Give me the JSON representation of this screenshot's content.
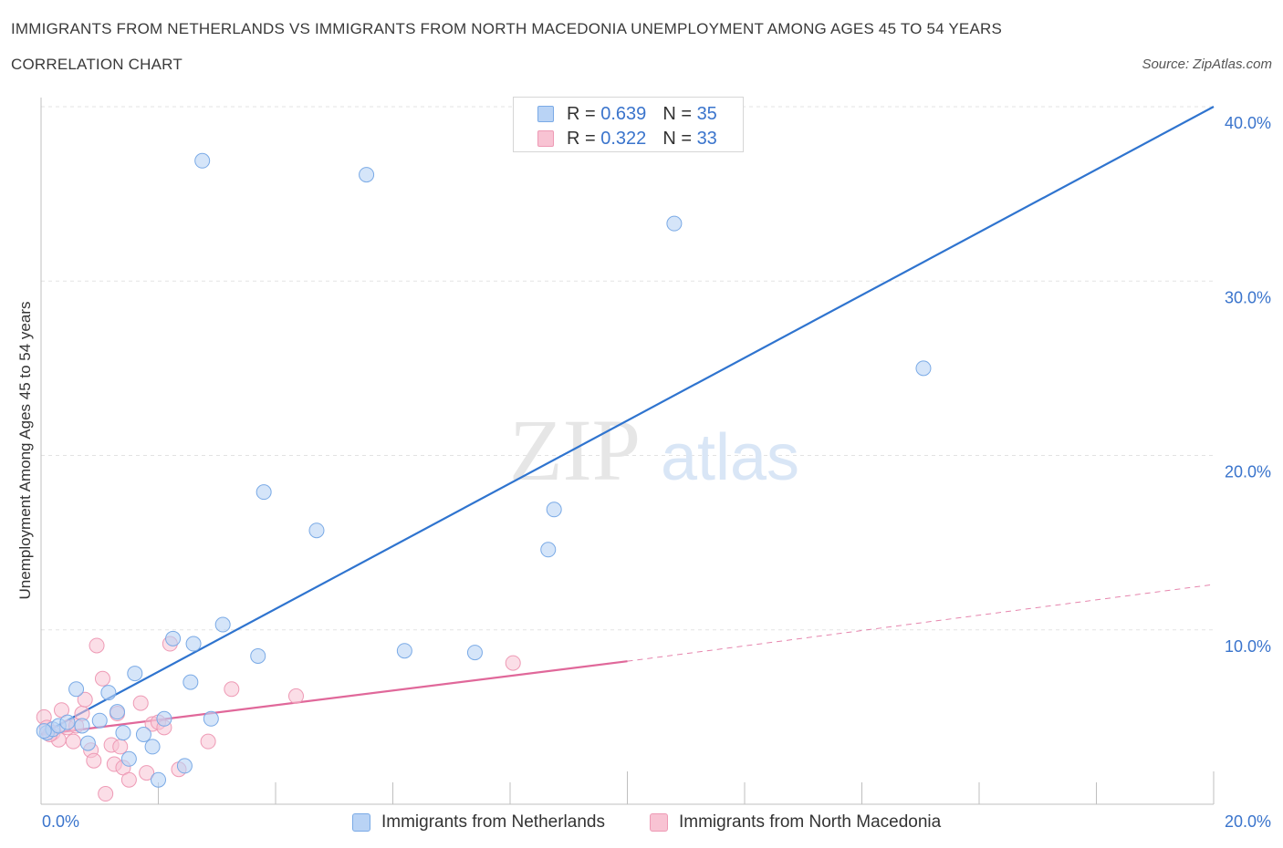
{
  "header": {
    "title": "IMMIGRANTS FROM NETHERLANDS VS IMMIGRANTS FROM NORTH MACEDONIA UNEMPLOYMENT AMONG AGES 45 TO 54 YEARS",
    "subtitle": "CORRELATION CHART",
    "source": "Source: ZipAtlas.com"
  },
  "watermark": {
    "zip": "ZIP",
    "atlas": "atlas"
  },
  "legend": {
    "netherlands": {
      "r_label": "R =",
      "r_value": "0.639",
      "n_label": "N =",
      "n_value": "35"
    },
    "macedonia": {
      "r_label": "R =",
      "r_value": "0.322",
      "n_label": "N =",
      "n_value": "33"
    }
  },
  "colors": {
    "netherlands_fill": "#b9d3f5",
    "netherlands_stroke": "#7aaae6",
    "netherlands_line": "#2f74cf",
    "macedonia_fill": "#f8c3d3",
    "macedonia_stroke": "#ee9ab5",
    "macedonia_line": "#e0689a",
    "tick_label": "#3a74cc",
    "grid": "#e3e3e3"
  },
  "chart_data": {
    "type": "scatter",
    "title": "IMMIGRANTS FROM NETHERLANDS VS IMMIGRANTS FROM NORTH MACEDONIA UNEMPLOYMENT AMONG AGES 45 TO 54 YEARS",
    "xlabel": "",
    "ylabel": "Unemployment Among Ages 45 to 54 years",
    "xlim": [
      0,
      20
    ],
    "ylim": [
      0,
      40
    ],
    "x_tick_labels": [
      "0.0%",
      "20.0%"
    ],
    "y_ticks": [
      10,
      20,
      30,
      40
    ],
    "y_tick_labels": [
      "10.0%",
      "20.0%",
      "30.0%",
      "40.0%"
    ],
    "grid": true,
    "legend_position": "top-center",
    "series": [
      {
        "name": "Immigrants from Netherlands",
        "points": [
          [
            0.1,
            4.1
          ],
          [
            0.2,
            4.3
          ],
          [
            0.3,
            4.5
          ],
          [
            0.45,
            4.7
          ],
          [
            0.6,
            6.6
          ],
          [
            0.7,
            4.5
          ],
          [
            0.8,
            3.5
          ],
          [
            1.0,
            4.8
          ],
          [
            1.15,
            6.4
          ],
          [
            1.3,
            5.3
          ],
          [
            1.4,
            4.1
          ],
          [
            1.5,
            2.6
          ],
          [
            1.6,
            7.5
          ],
          [
            1.75,
            4.0
          ],
          [
            1.9,
            3.3
          ],
          [
            2.0,
            1.4
          ],
          [
            2.1,
            4.9
          ],
          [
            2.25,
            9.5
          ],
          [
            2.45,
            2.2
          ],
          [
            2.55,
            7.0
          ],
          [
            2.6,
            9.2
          ],
          [
            2.9,
            4.9
          ],
          [
            2.75,
            36.9
          ],
          [
            3.1,
            10.3
          ],
          [
            3.7,
            8.5
          ],
          [
            3.8,
            17.9
          ],
          [
            4.7,
            15.7
          ],
          [
            5.55,
            36.1
          ],
          [
            6.2,
            8.8
          ],
          [
            7.4,
            8.7
          ],
          [
            8.65,
            14.6
          ],
          [
            8.75,
            16.9
          ],
          [
            10.8,
            33.3
          ],
          [
            15.05,
            25.0
          ],
          [
            0.05,
            4.2
          ]
        ],
        "trend": {
          "from": [
            0,
            4.0
          ],
          "to": [
            20,
            40.0
          ]
        }
      },
      {
        "name": "Immigrants from North Macedonia",
        "points": [
          [
            0.05,
            5.0
          ],
          [
            0.1,
            4.4
          ],
          [
            0.2,
            4.1
          ],
          [
            0.3,
            3.7
          ],
          [
            0.35,
            5.4
          ],
          [
            0.45,
            4.4
          ],
          [
            0.55,
            3.6
          ],
          [
            0.6,
            4.5
          ],
          [
            0.7,
            5.2
          ],
          [
            0.75,
            6.0
          ],
          [
            0.85,
            3.1
          ],
          [
            0.9,
            2.5
          ],
          [
            0.95,
            9.1
          ],
          [
            1.05,
            7.2
          ],
          [
            1.1,
            0.6
          ],
          [
            1.2,
            3.4
          ],
          [
            1.25,
            2.3
          ],
          [
            1.3,
            5.2
          ],
          [
            1.35,
            3.3
          ],
          [
            1.4,
            2.1
          ],
          [
            1.5,
            1.4
          ],
          [
            1.7,
            5.8
          ],
          [
            1.8,
            1.8
          ],
          [
            1.9,
            4.6
          ],
          [
            2.0,
            4.7
          ],
          [
            2.1,
            4.4
          ],
          [
            2.2,
            9.2
          ],
          [
            2.35,
            2.0
          ],
          [
            2.85,
            3.6
          ],
          [
            3.25,
            6.6
          ],
          [
            4.35,
            6.2
          ],
          [
            8.05,
            8.1
          ],
          [
            0.15,
            4.0
          ]
        ],
        "trend": {
          "from": [
            0,
            4.0
          ],
          "to": [
            10,
            8.2
          ],
          "dashed_to": [
            20,
            12.6
          ]
        }
      }
    ]
  }
}
